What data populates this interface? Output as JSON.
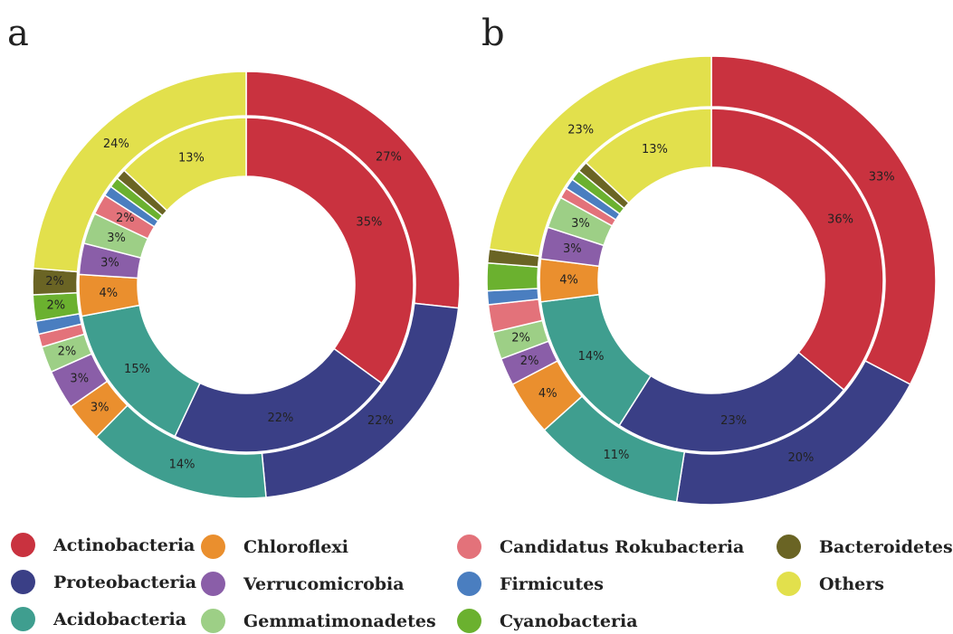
{
  "panels": [
    "a",
    "b"
  ],
  "colors": {
    "Actinobacteria": "#c9323f",
    "Proteobacteria": "#3a3f86",
    "Acidobacteria": "#3f9e8f",
    "Chloroflexi": "#ea8f2e",
    "Verrucomicrobia": "#8a5ea8",
    "Gemmatimonadetes": "#9dcf86",
    "Candidatus Rokubacteria": "#e3727a",
    "Firmicutes": "#4a7ec0",
    "Cyanobacteria": "#6bb12f",
    "Bacteroidetes": "#6a6424",
    "Others": "#e2e04c"
  },
  "legend": [
    "Actinobacteria",
    "Proteobacteria",
    "Acidobacteria",
    "Chloroflexi",
    "Verrucomicrobia",
    "Gemmatimonadetes",
    "Candidatus Rokubacteria",
    "Firmicutes",
    "Cyanobacteria",
    "Bacteroidetes",
    "Others"
  ],
  "chart_data": [
    {
      "type": "pie",
      "subtype": "nested-donut",
      "panel": "a",
      "categories": [
        "Actinobacteria",
        "Proteobacteria",
        "Acidobacteria",
        "Chloroflexi",
        "Verrucomicrobia",
        "Gemmatimonadetes",
        "Candidatus Rokubacteria",
        "Firmicutes",
        "Cyanobacteria",
        "Bacteroidetes",
        "Others"
      ],
      "inner_ring": [
        35,
        22,
        15,
        4,
        3,
        3,
        2,
        1,
        1,
        1,
        13
      ],
      "outer_ring": [
        27,
        22,
        14,
        3,
        3,
        2,
        1,
        1,
        2,
        2,
        24
      ],
      "inner_labels": [
        "35%",
        "22%",
        "15%",
        "4%",
        "3%",
        "3%",
        "2%",
        "",
        "",
        "",
        "13%"
      ],
      "outer_labels": [
        "27%",
        "22%",
        "14%",
        "3%",
        "3%",
        "2%",
        "",
        "",
        "2%",
        "2%",
        "24%"
      ]
    },
    {
      "type": "pie",
      "subtype": "nested-donut",
      "panel": "b",
      "categories": [
        "Actinobacteria",
        "Proteobacteria",
        "Acidobacteria",
        "Chloroflexi",
        "Verrucomicrobia",
        "Gemmatimonadetes",
        "Candidatus Rokubacteria",
        "Firmicutes",
        "Cyanobacteria",
        "Bacteroidetes",
        "Others"
      ],
      "inner_ring": [
        36,
        23,
        14,
        4,
        3,
        3,
        1,
        1,
        1,
        1,
        13
      ],
      "outer_ring": [
        33,
        20,
        11,
        4,
        2,
        2,
        2,
        1,
        2,
        1,
        23
      ],
      "inner_labels": [
        "36%",
        "23%",
        "14%",
        "4%",
        "3%",
        "3%",
        "",
        "",
        "",
        "",
        "13%"
      ],
      "outer_labels": [
        "33%",
        "20%",
        "11%",
        "4%",
        "2%",
        "2%",
        "",
        "",
        "",
        "",
        "23%"
      ]
    }
  ]
}
